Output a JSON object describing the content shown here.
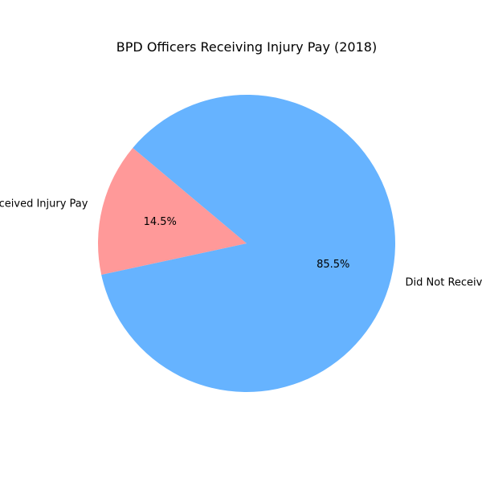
{
  "chart_data": {
    "type": "pie",
    "title": "BPD Officers Receiving Injury Pay (2018)",
    "slices": [
      {
        "label": "Received Injury Pay",
        "value": 14.5,
        "pct_label": "14.5%",
        "color": "#ff9999"
      },
      {
        "label": "Did Not Receive Injury Pay",
        "value": 85.5,
        "pct_label": "85.5%",
        "color": "#66b3ff"
      }
    ],
    "start_angle_deg": 140,
    "direction": "counterclockwise",
    "legend": "none"
  }
}
